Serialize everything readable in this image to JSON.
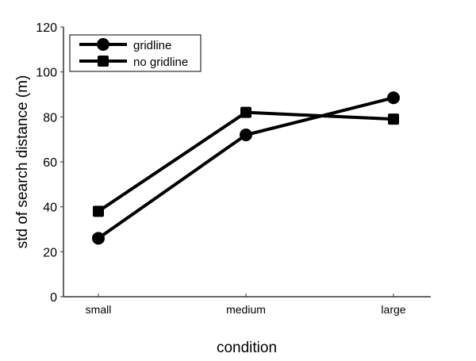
{
  "chart_data": {
    "type": "line",
    "title": "",
    "xlabel": "condition",
    "ylabel": "std of search distance (m)",
    "categories": [
      "small",
      "medium",
      "large"
    ],
    "ylim": [
      0,
      120
    ],
    "yticks": [
      0,
      20,
      40,
      60,
      80,
      100,
      120
    ],
    "grid": false,
    "legend_position": "top-left",
    "series": [
      {
        "name": "gridline",
        "marker": "circle",
        "color": "#000000",
        "values": [
          26,
          72,
          88.5
        ]
      },
      {
        "name": "no gridline",
        "marker": "square",
        "color": "#000000",
        "values": [
          38,
          82,
          79
        ]
      }
    ]
  }
}
